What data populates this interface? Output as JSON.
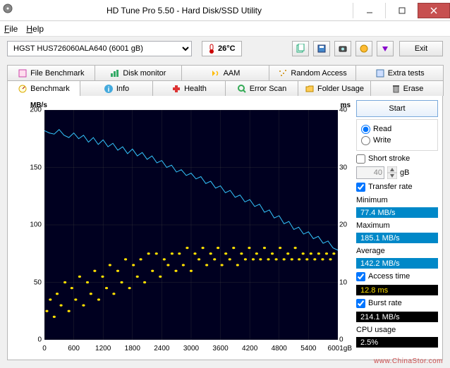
{
  "window": {
    "title": "HD Tune Pro 5.50 - Hard Disk/SSD Utility",
    "accent_color": "#c75050"
  },
  "menu": {
    "file": "File",
    "help": "Help"
  },
  "toolbar": {
    "drive": "HGST HUS726060ALA640 (6001 gB)",
    "temperature": "26°C",
    "exit": "Exit"
  },
  "tabs_top": [
    {
      "label": "File Benchmark"
    },
    {
      "label": "Disk monitor"
    },
    {
      "label": "AAM"
    },
    {
      "label": "Random Access"
    },
    {
      "label": "Extra tests"
    }
  ],
  "tabs_bottom": [
    {
      "label": "Benchmark",
      "active": true
    },
    {
      "label": "Info"
    },
    {
      "label": "Health"
    },
    {
      "label": "Error Scan"
    },
    {
      "label": "Folder Usage"
    },
    {
      "label": "Erase"
    }
  ],
  "chart": {
    "type": "line+scatter",
    "background_color": "#000020",
    "grid_color": "#404040",
    "line_color": "#34c6ff",
    "scatter_color": "#ffe000",
    "y_left": {
      "label": "MB/s",
      "min": 0,
      "max": 200,
      "ticks": [
        0,
        50,
        100,
        150,
        200
      ]
    },
    "y_right": {
      "label": "ms",
      "min": 0,
      "max": 40,
      "ticks": [
        0,
        10,
        20,
        30,
        40
      ]
    },
    "x": {
      "min": 0,
      "max": 6001,
      "unit": "gB",
      "ticks": [
        0,
        600,
        1200,
        1800,
        2400,
        3000,
        3600,
        4200,
        4800,
        5400
      ],
      "last_label": "6001gB"
    },
    "transfer_series": [
      [
        0,
        182
      ],
      [
        100,
        180
      ],
      [
        200,
        179
      ],
      [
        300,
        183
      ],
      [
        400,
        178
      ],
      [
        500,
        176
      ],
      [
        600,
        180
      ],
      [
        700,
        175
      ],
      [
        800,
        178
      ],
      [
        900,
        172
      ],
      [
        1000,
        176
      ],
      [
        1100,
        170
      ],
      [
        1200,
        174
      ],
      [
        1300,
        168
      ],
      [
        1400,
        171
      ],
      [
        1500,
        165
      ],
      [
        1600,
        168
      ],
      [
        1700,
        162
      ],
      [
        1800,
        166
      ],
      [
        1900,
        160
      ],
      [
        2000,
        163
      ],
      [
        2100,
        157
      ],
      [
        2200,
        160
      ],
      [
        2300,
        154
      ],
      [
        2400,
        156
      ],
      [
        2500,
        150
      ],
      [
        2600,
        152
      ],
      [
        2700,
        146
      ],
      [
        2800,
        148
      ],
      [
        2900,
        143
      ],
      [
        3000,
        145
      ],
      [
        3100,
        140
      ],
      [
        3200,
        142
      ],
      [
        3300,
        136
      ],
      [
        3400,
        138
      ],
      [
        3500,
        132
      ],
      [
        3600,
        134
      ],
      [
        3700,
        128
      ],
      [
        3800,
        130
      ],
      [
        3900,
        124
      ],
      [
        4000,
        126
      ],
      [
        4100,
        120
      ],
      [
        4200,
        122
      ],
      [
        4300,
        116
      ],
      [
        4400,
        118
      ],
      [
        4500,
        111
      ],
      [
        4600,
        113
      ],
      [
        4700,
        106
      ],
      [
        4800,
        108
      ],
      [
        4900,
        101
      ],
      [
        5000,
        103
      ],
      [
        5100,
        96
      ],
      [
        5200,
        98
      ],
      [
        5300,
        92
      ],
      [
        5400,
        94
      ],
      [
        5500,
        88
      ],
      [
        5600,
        90
      ],
      [
        5700,
        84
      ],
      [
        5800,
        86
      ],
      [
        5900,
        80
      ],
      [
        6001,
        78
      ]
    ],
    "access_series": [
      [
        50,
        5
      ],
      [
        120,
        7
      ],
      [
        200,
        4
      ],
      [
        260,
        8
      ],
      [
        340,
        6
      ],
      [
        420,
        10
      ],
      [
        500,
        5
      ],
      [
        560,
        9
      ],
      [
        640,
        7
      ],
      [
        720,
        11
      ],
      [
        800,
        6
      ],
      [
        880,
        10
      ],
      [
        950,
        8
      ],
      [
        1030,
        12
      ],
      [
        1110,
        7
      ],
      [
        1190,
        11
      ],
      [
        1270,
        9
      ],
      [
        1340,
        13
      ],
      [
        1420,
        8
      ],
      [
        1500,
        12
      ],
      [
        1580,
        10
      ],
      [
        1660,
        14
      ],
      [
        1740,
        9
      ],
      [
        1820,
        13
      ],
      [
        1900,
        11
      ],
      [
        1970,
        14
      ],
      [
        2050,
        10
      ],
      [
        2130,
        15
      ],
      [
        2210,
        12
      ],
      [
        2290,
        15
      ],
      [
        2370,
        11
      ],
      [
        2450,
        14
      ],
      [
        2530,
        13
      ],
      [
        2610,
        15
      ],
      [
        2690,
        12
      ],
      [
        2760,
        15
      ],
      [
        2840,
        13
      ],
      [
        2920,
        16
      ],
      [
        3000,
        12
      ],
      [
        3080,
        15
      ],
      [
        3160,
        14
      ],
      [
        3240,
        16
      ],
      [
        3320,
        13
      ],
      [
        3400,
        15
      ],
      [
        3480,
        14
      ],
      [
        3550,
        16
      ],
      [
        3630,
        13
      ],
      [
        3710,
        15
      ],
      [
        3790,
        14
      ],
      [
        3870,
        16
      ],
      [
        3950,
        13
      ],
      [
        4030,
        15
      ],
      [
        4110,
        14
      ],
      [
        4190,
        16
      ],
      [
        4270,
        14
      ],
      [
        4340,
        15
      ],
      [
        4420,
        14
      ],
      [
        4500,
        16
      ],
      [
        4580,
        14
      ],
      [
        4660,
        15
      ],
      [
        4740,
        14
      ],
      [
        4820,
        16
      ],
      [
        4900,
        14
      ],
      [
        4980,
        15
      ],
      [
        5060,
        14
      ],
      [
        5130,
        16
      ],
      [
        5210,
        14
      ],
      [
        5290,
        15
      ],
      [
        5370,
        14
      ],
      [
        5450,
        15
      ],
      [
        5530,
        14
      ],
      [
        5610,
        15
      ],
      [
        5690,
        14
      ],
      [
        5770,
        15
      ],
      [
        5850,
        14
      ],
      [
        5920,
        15
      ]
    ]
  },
  "side": {
    "start": "Start",
    "read": "Read",
    "write": "Write",
    "short_stroke": "Short stroke",
    "short_stroke_value": "40",
    "short_stroke_unit": "gB",
    "transfer_rate": "Transfer rate",
    "minimum": "Minimum",
    "minimum_val": "77.4 MB/s",
    "maximum": "Maximum",
    "maximum_val": "185.1 MB/s",
    "average": "Average",
    "average_val": "142.2 MB/s",
    "access_time": "Access time",
    "access_time_val": "12.8 ms",
    "burst_rate": "Burst rate",
    "burst_rate_val": "214.1 MB/s",
    "cpu_usage": "CPU usage",
    "cpu_usage_val": "2.5%"
  },
  "watermark": "www.ChinaStor.com"
}
